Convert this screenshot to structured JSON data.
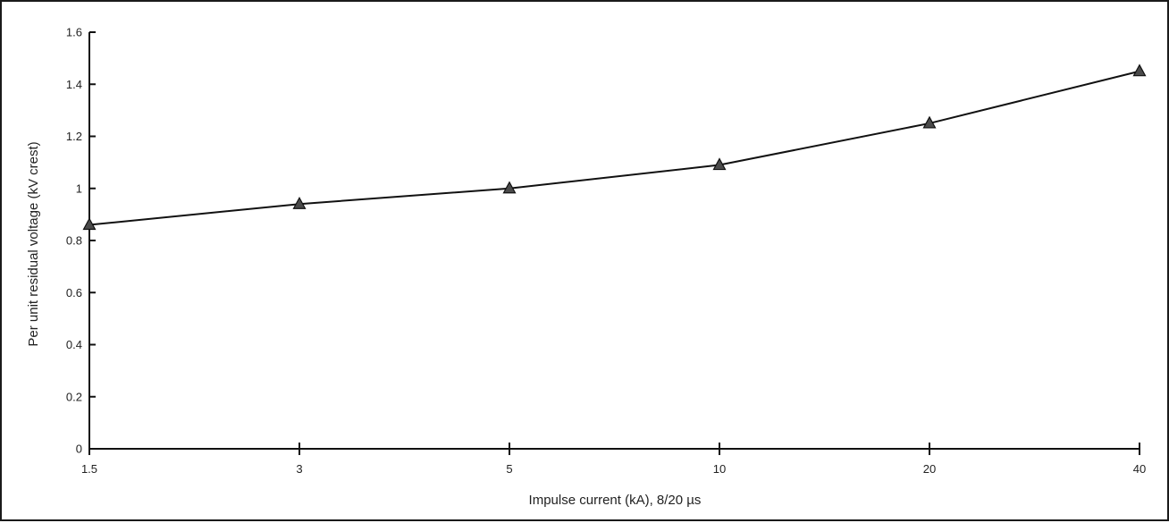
{
  "chart_data": {
    "type": "line",
    "title": "",
    "xlabel": "Impulse current (kA), 8/20 µs",
    "ylabel": "Per unit residual voltage (kV crest)",
    "categories": [
      "1.5",
      "3",
      "5",
      "10",
      "20",
      "40"
    ],
    "x_scale": "categorical",
    "ylim": [
      0,
      1.6
    ],
    "yticks": [
      "0",
      "0.2",
      "0.4",
      "0.6",
      "0.8",
      "1",
      "1.2",
      "1.4",
      "1.6"
    ],
    "series": [
      {
        "values": [
          0.86,
          0.94,
          1.0,
          1.09,
          1.25,
          1.45
        ],
        "marker": "triangle",
        "marker_color": "#4a4a4a",
        "line_color": "#111111"
      }
    ],
    "grid": false,
    "legend": "none"
  }
}
